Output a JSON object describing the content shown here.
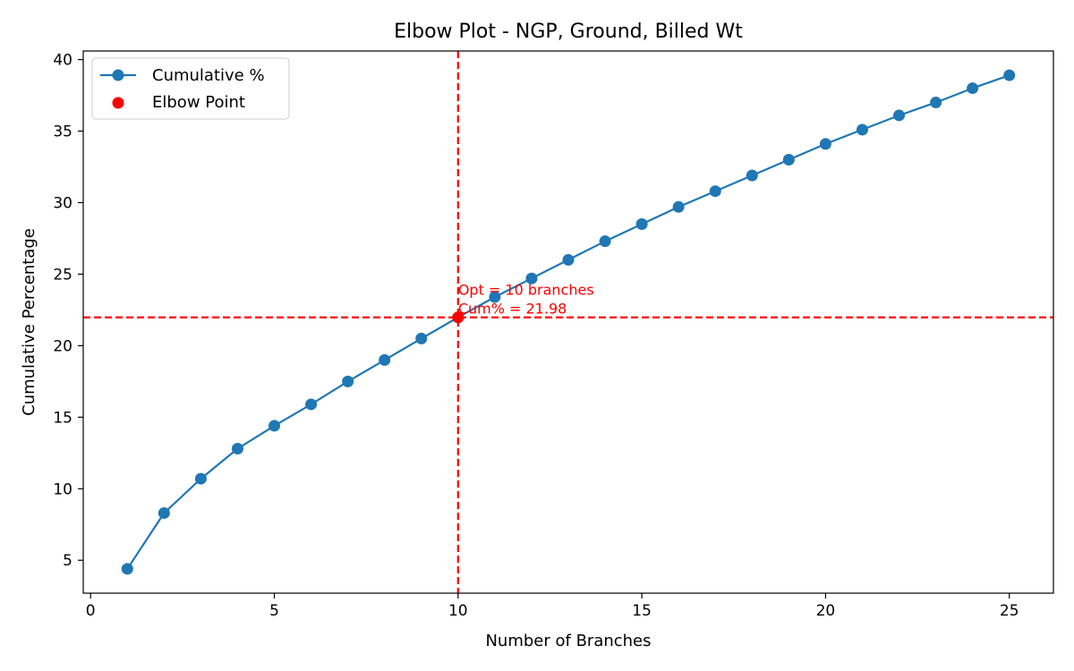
{
  "chart_data": {
    "type": "line",
    "title": "Elbow Plot - NGP, Ground, Billed Wt",
    "xlabel": "Number of Branches",
    "ylabel": "Cumulative Percentage",
    "xlim": [
      -0.2,
      26.2
    ],
    "ylim": [
      2.7,
      40.6
    ],
    "xticks": [
      0,
      5,
      10,
      15,
      20,
      25
    ],
    "yticks": [
      5,
      10,
      15,
      20,
      25,
      30,
      35,
      40
    ],
    "grid": false,
    "legend_position": "top-left",
    "series": [
      {
        "name": "Cumulative %",
        "color": "#1f77b4",
        "x": [
          1,
          2,
          3,
          4,
          5,
          6,
          7,
          8,
          9,
          10,
          11,
          12,
          13,
          14,
          15,
          16,
          17,
          18,
          19,
          20,
          21,
          22,
          23,
          24,
          25
        ],
        "y": [
          4.4,
          8.3,
          10.7,
          12.8,
          14.4,
          15.9,
          17.5,
          19.0,
          20.5,
          21.98,
          23.4,
          24.7,
          26.0,
          27.3,
          28.5,
          29.7,
          30.8,
          31.9,
          33.0,
          34.1,
          35.1,
          36.1,
          37.0,
          38.0,
          38.9
        ]
      }
    ],
    "elbow": {
      "name": "Elbow Point",
      "x": 10,
      "y": 21.98,
      "color": "#ff0000",
      "annotation_line1": "Opt = 10 branches",
      "annotation_line2": "Cum% = 21.98"
    }
  }
}
